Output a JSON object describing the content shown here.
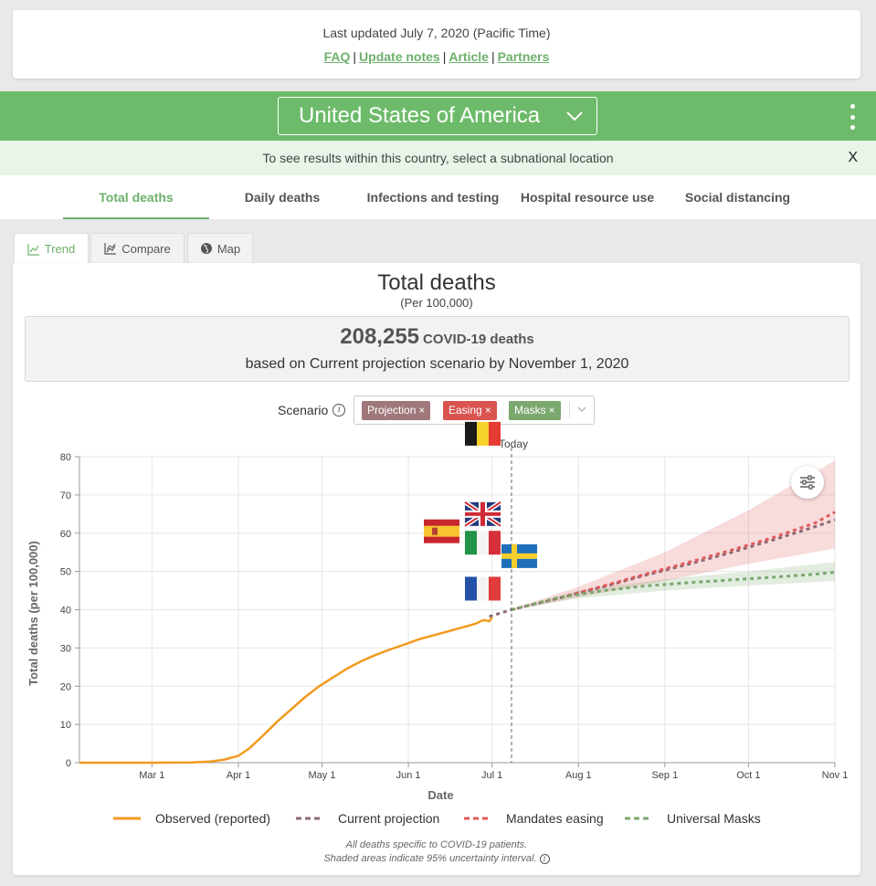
{
  "header": {
    "last_updated": "Last updated July 7, 2020 (Pacific Time)",
    "links": [
      "FAQ",
      "Update notes",
      "Article",
      "Partners"
    ],
    "separator": "|"
  },
  "location": {
    "selected": "United States of America",
    "notice": "To see results within this country, select a subnational location",
    "close_label": "X"
  },
  "main_tabs": [
    {
      "label": "Total deaths",
      "active": true
    },
    {
      "label": "Daily deaths",
      "active": false
    },
    {
      "label": "Infections and testing",
      "active": false
    },
    {
      "label": "Hospital resource use",
      "active": false
    },
    {
      "label": "Social distancing",
      "active": false
    }
  ],
  "view_tabs": [
    {
      "label": "Trend",
      "icon": "line-chart-icon",
      "active": true
    },
    {
      "label": "Compare",
      "icon": "compare-chart-icon",
      "active": false
    },
    {
      "label": "Map",
      "icon": "globe-icon",
      "active": false
    }
  ],
  "chart_header": {
    "title": "Total deaths",
    "subtitle": "(Per 100,000)",
    "summary_number": "208,255",
    "summary_unit": "COVID-19 deaths",
    "summary_basis": "based on Current projection scenario by November 1, 2020"
  },
  "scenario": {
    "label": "Scenario",
    "chips": [
      {
        "label": "Projection",
        "color": "#a0787c"
      },
      {
        "label": "Easing",
        "color": "#d9534f"
      },
      {
        "label": "Masks",
        "color": "#7ba86f"
      }
    ],
    "chip_remove": "×"
  },
  "colors": {
    "observed": "#f29a1f",
    "projection": "#8a6a72",
    "easing": "#e05b5b",
    "masks": "#7ba86f",
    "accent": "#6db06b"
  },
  "chart_data": {
    "type": "line",
    "title": "Total deaths",
    "subtitle": "(Per 100,000)",
    "xlabel": "Date",
    "ylabel": "Total deaths (per 100,000)",
    "ylim": [
      0,
      80
    ],
    "yticks": [
      "0",
      "10",
      "20",
      "30",
      "40",
      "50",
      "60",
      "70",
      "80"
    ],
    "xlim": [
      "2020-02-04",
      "2020-11-01"
    ],
    "xticks": [
      {
        "date": "2020-03-01",
        "label": "Mar 1"
      },
      {
        "date": "2020-04-01",
        "label": "Apr 1"
      },
      {
        "date": "2020-05-01",
        "label": "May 1"
      },
      {
        "date": "2020-06-01",
        "label": "Jun 1"
      },
      {
        "date": "2020-07-01",
        "label": "Jul 1"
      },
      {
        "date": "2020-08-01",
        "label": "Aug 1"
      },
      {
        "date": "2020-09-01",
        "label": "Sep 1"
      },
      {
        "date": "2020-10-01",
        "label": "Oct 1"
      },
      {
        "date": "2020-11-01",
        "label": "Nov 1"
      }
    ],
    "today": {
      "date": "2020-07-08",
      "label": "Today"
    },
    "grid": true,
    "legend_position": "bottom",
    "series": [
      {
        "name": "Observed (reported)",
        "style": "solid",
        "points": [
          [
            "2020-02-04",
            0
          ],
          [
            "2020-03-01",
            0
          ],
          [
            "2020-03-15",
            0.05
          ],
          [
            "2020-03-22",
            0.3
          ],
          [
            "2020-03-27",
            0.8
          ],
          [
            "2020-04-01",
            1.8
          ],
          [
            "2020-04-05",
            3.8
          ],
          [
            "2020-04-10",
            7.2
          ],
          [
            "2020-04-15",
            10.8
          ],
          [
            "2020-04-20",
            14.0
          ],
          [
            "2020-04-25",
            17.2
          ],
          [
            "2020-04-30",
            20.0
          ],
          [
            "2020-05-05",
            22.3
          ],
          [
            "2020-05-10",
            24.6
          ],
          [
            "2020-05-15",
            26.5
          ],
          [
            "2020-05-20",
            28.1
          ],
          [
            "2020-05-25",
            29.5
          ],
          [
            "2020-05-31",
            31.0
          ],
          [
            "2020-06-05",
            32.3
          ],
          [
            "2020-06-10",
            33.3
          ],
          [
            "2020-06-15",
            34.3
          ],
          [
            "2020-06-20",
            35.3
          ],
          [
            "2020-06-25",
            36.3
          ],
          [
            "2020-06-28",
            37.3
          ],
          [
            "2020-06-30",
            37.0
          ],
          [
            "2020-07-01",
            38.0
          ]
        ]
      },
      {
        "name": "Current projection",
        "style": "dashed",
        "points": [
          [
            "2020-06-30",
            38.2
          ],
          [
            "2020-07-08",
            40.0
          ],
          [
            "2020-07-25",
            43.0
          ],
          [
            "2020-08-10",
            46.0
          ],
          [
            "2020-08-25",
            49.0
          ],
          [
            "2020-09-10",
            52.0
          ],
          [
            "2020-09-25",
            55.0
          ],
          [
            "2020-10-10",
            58.3
          ],
          [
            "2020-10-25",
            61.7
          ],
          [
            "2020-11-01",
            63.5
          ]
        ],
        "band": {
          "lower": [
            [
              "2020-07-08",
              39.8
            ],
            [
              "2020-08-01",
              43.3
            ],
            [
              "2020-09-01",
              47.5
            ],
            [
              "2020-10-01",
              52.0
            ],
            [
              "2020-11-01",
              56.0
            ]
          ],
          "upper": [
            [
              "2020-07-08",
              40.2
            ],
            [
              "2020-08-01",
              46.0
            ],
            [
              "2020-09-01",
              55.0
            ],
            [
              "2020-10-01",
              66.0
            ],
            [
              "2020-11-01",
              79.0
            ]
          ]
        }
      },
      {
        "name": "Mandates easing",
        "style": "dashed",
        "points": [
          [
            "2020-07-08",
            40.0
          ],
          [
            "2020-07-25",
            43.1
          ],
          [
            "2020-08-10",
            46.2
          ],
          [
            "2020-08-25",
            49.3
          ],
          [
            "2020-09-10",
            52.5
          ],
          [
            "2020-09-25",
            55.6
          ],
          [
            "2020-10-10",
            58.9
          ],
          [
            "2020-10-25",
            62.7
          ],
          [
            "2020-11-01",
            65.5
          ]
        ]
      },
      {
        "name": "Universal Masks",
        "style": "dashed",
        "points": [
          [
            "2020-07-08",
            40.0
          ],
          [
            "2020-07-25",
            43.2
          ],
          [
            "2020-08-10",
            45.0
          ],
          [
            "2020-08-25",
            46.2
          ],
          [
            "2020-09-10",
            47.1
          ],
          [
            "2020-09-25",
            47.8
          ],
          [
            "2020-10-10",
            48.5
          ],
          [
            "2020-10-25",
            49.3
          ],
          [
            "2020-11-01",
            49.8
          ]
        ],
        "band": {
          "lower": [
            [
              "2020-07-08",
              39.9
            ],
            [
              "2020-08-01",
              43.0
            ],
            [
              "2020-09-01",
              45.0
            ],
            [
              "2020-10-01",
              46.3
            ],
            [
              "2020-11-01",
              47.5
            ]
          ],
          "upper": [
            [
              "2020-07-08",
              40.1
            ],
            [
              "2020-08-01",
              45.0
            ],
            [
              "2020-09-01",
              48.0
            ],
            [
              "2020-10-01",
              50.0
            ],
            [
              "2020-11-01",
              52.5
            ]
          ]
        }
      }
    ],
    "flag_markers": [
      {
        "country": "belgium-flag",
        "value": 86
      },
      {
        "country": "united-kingdom-flag",
        "value": 65
      },
      {
        "country": "spain-flag",
        "value": 60.5
      },
      {
        "country": "italy-flag",
        "value": 57.5
      },
      {
        "country": "sweden-flag",
        "value": 54
      },
      {
        "country": "france-flag",
        "value": 45.5
      }
    ]
  },
  "footnote": {
    "line1": "All deaths specific to COVID-19 patients.",
    "line2": "Shaded areas indicate 95% uncertainty interval."
  }
}
